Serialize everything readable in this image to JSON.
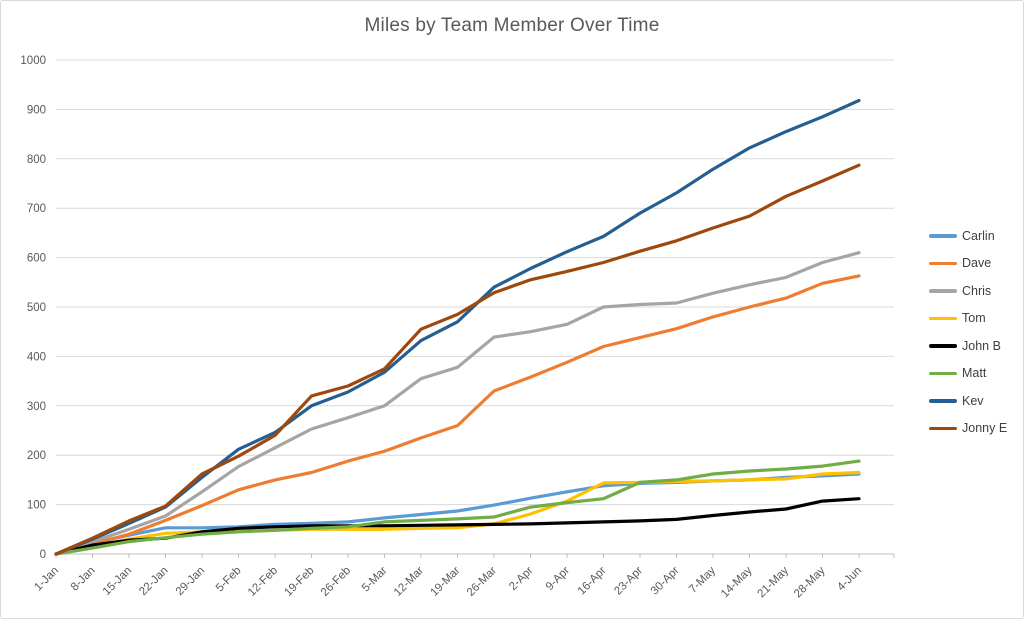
{
  "chart_data": {
    "type": "line",
    "title": "Miles by Team Member Over Time",
    "xlabel": "",
    "ylabel": "",
    "ylim": [
      0,
      1000
    ],
    "ytick_step": 100,
    "grid": true,
    "legend_position": "right",
    "x_labels": [
      "1-Jan",
      "8-Jan",
      "15-Jan",
      "22-Jan",
      "29-Jan",
      "5-Feb",
      "12-Feb",
      "19-Feb",
      "26-Feb",
      "5-Mar",
      "12-Mar",
      "19-Mar",
      "26-Mar",
      "2-Apr",
      "9-Apr",
      "16-Apr",
      "23-Apr",
      "30-Apr",
      "7-May",
      "14-May",
      "21-May",
      "28-May",
      "4-Jun"
    ],
    "series": [
      {
        "name": "Carlin",
        "color": "#5B9BD5",
        "values": [
          0,
          22,
          38,
          53,
          53,
          55,
          60,
          62,
          65,
          73,
          80,
          87,
          99,
          113,
          126,
          138,
          143,
          145,
          148,
          150,
          155,
          158,
          162
        ]
      },
      {
        "name": "Dave",
        "color": "#ED7D31",
        "values": [
          0,
          20,
          40,
          68,
          98,
          130,
          150,
          165,
          188,
          208,
          235,
          260,
          330,
          358,
          388,
          420,
          438,
          456,
          480,
          500,
          518,
          548,
          563
        ]
      },
      {
        "name": "Chris",
        "color": "#A5A5A5",
        "values": [
          0,
          25,
          50,
          77,
          126,
          177,
          215,
          253,
          276,
          300,
          355,
          378,
          439,
          450,
          465,
          500,
          505,
          508,
          528,
          545,
          560,
          590,
          610
        ]
      },
      {
        "name": "Tom",
        "color": "#FFC000",
        "values": [
          0,
          15,
          30,
          42,
          45,
          46,
          48,
          50,
          50,
          50,
          52,
          53,
          61,
          81,
          107,
          144,
          145,
          147,
          148,
          150,
          152,
          162,
          165
        ]
      },
      {
        "name": "John B",
        "color": "#000000",
        "values": [
          0,
          18,
          28,
          32,
          45,
          52,
          55,
          57,
          57,
          57,
          58,
          59,
          60,
          61,
          63,
          65,
          67,
          70,
          78,
          85,
          91,
          107,
          112
        ]
      },
      {
        "name": "Matt",
        "color": "#70AD47",
        "values": [
          0,
          12,
          25,
          33,
          40,
          45,
          48,
          52,
          55,
          65,
          68,
          71,
          75,
          95,
          104,
          112,
          145,
          150,
          162,
          168,
          172,
          178,
          188
        ]
      },
      {
        "name": "Kev",
        "color": "#255E91",
        "values": [
          0,
          30,
          62,
          95,
          155,
          212,
          246,
          300,
          328,
          368,
          432,
          470,
          540,
          578,
          612,
          643,
          690,
          731,
          779,
          822,
          855,
          885,
          918
        ]
      },
      {
        "name": "Jonny E",
        "color": "#9E480E",
        "values": [
          0,
          32,
          67,
          97,
          162,
          198,
          240,
          320,
          340,
          375,
          455,
          485,
          529,
          555,
          572,
          590,
          613,
          634,
          660,
          684,
          724,
          755,
          787
        ]
      }
    ]
  },
  "colors": {
    "title_text": "#595959",
    "axis_text": "#595959",
    "legend_text": "#404040",
    "gridline": "#D9D9D9",
    "axis_line": "#BFBFBF",
    "background": "#FFFFFF"
  }
}
